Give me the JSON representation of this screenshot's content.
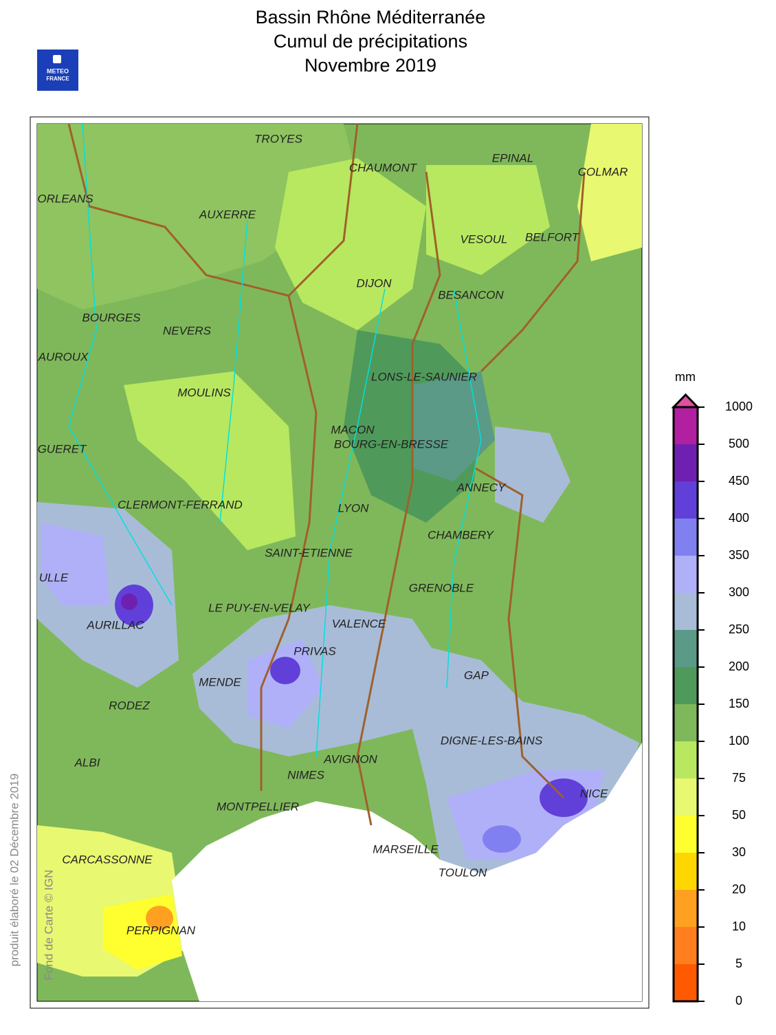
{
  "header": {
    "title_lines": [
      "Bassin Rhône Méditerranée",
      "Cumul de précipitations",
      "Novembre 2019"
    ],
    "logo": [
      "METEO",
      "FRANCE"
    ]
  },
  "map": {
    "cities": [
      "TROYES",
      "CHAUMONT",
      "EPINAL",
      "COLMAR",
      "ORLEANS",
      "AUXERRE",
      "VESOUL",
      "BELFORT",
      "DIJON",
      "BESANCON",
      "BOURGES",
      "NEVERS",
      "AUROUX",
      "LONS-LE-SAUNIER",
      "MOULINS",
      "MACON",
      "BOURG-EN-BRESSE",
      "GUERET",
      "ANNECY",
      "CLERMONT-FERRAND",
      "LYON",
      "CHAMBERY",
      "SAINT-ETIENNE",
      "ULLE",
      "GRENOBLE",
      "LE PUY-EN-VELAY",
      "AURILLAC",
      "VALENCE",
      "PRIVAS",
      "GAP",
      "MENDE",
      "RODEZ",
      "DIGNE-LES-BAINS",
      "ALBI",
      "AVIGNON",
      "NIMES",
      "NICE",
      "MONTPELLIER",
      "CARCASSONNE",
      "MARSEILLE",
      "TOULON",
      "PERPIGNAN"
    ]
  },
  "legend": {
    "unit": "mm",
    "ticks": [
      0,
      5,
      10,
      20,
      30,
      50,
      75,
      100,
      150,
      200,
      250,
      300,
      350,
      400,
      450,
      500,
      1000
    ],
    "colors": [
      "#ff5a00",
      "#ff7f1e",
      "#ffa020",
      "#ffd700",
      "#ffff30",
      "#e8f870",
      "#b8e860",
      "#7fb85a",
      "#4f9a5a",
      "#5a9a86",
      "#a8bcd8",
      "#b0b0f8",
      "#8080f0",
      "#6040d8",
      "#7020b0",
      "#b020a0"
    ],
    "overflow_color": "#e050a0"
  },
  "footer": {
    "produced": "produit élaboré le 02 Décembre 2019",
    "credit": "Fond de Carte © IGN"
  }
}
